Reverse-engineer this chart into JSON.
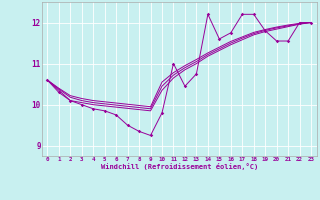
{
  "xlabel": "Windchill (Refroidissement éolien,°C)",
  "bg_color": "#c8f0f0",
  "line_color": "#990099",
  "grid_color": "#ffffff",
  "series": {
    "main": [
      10.6,
      10.3,
      10.1,
      10.0,
      9.9,
      9.85,
      9.75,
      9.5,
      9.35,
      9.25,
      9.8,
      11.0,
      10.45,
      10.75,
      12.2,
      11.6,
      11.75,
      12.2,
      12.2,
      11.8,
      11.55,
      11.55,
      12.0,
      12.0
    ],
    "line2": [
      10.6,
      10.35,
      10.1,
      10.05,
      10.0,
      9.97,
      9.94,
      9.91,
      9.88,
      9.85,
      10.35,
      10.65,
      10.85,
      11.0,
      11.18,
      11.32,
      11.46,
      11.58,
      11.7,
      11.78,
      11.84,
      11.9,
      11.96,
      12.0
    ],
    "line3": [
      10.6,
      10.38,
      10.18,
      10.1,
      10.05,
      10.02,
      9.99,
      9.96,
      9.93,
      9.9,
      10.45,
      10.72,
      10.9,
      11.05,
      11.22,
      11.36,
      11.5,
      11.62,
      11.73,
      11.81,
      11.87,
      11.92,
      11.97,
      12.0
    ],
    "line4": [
      10.6,
      10.4,
      10.22,
      10.15,
      10.1,
      10.07,
      10.04,
      10.01,
      9.98,
      9.95,
      10.55,
      10.78,
      10.95,
      11.1,
      11.26,
      11.4,
      11.54,
      11.65,
      11.76,
      11.83,
      11.89,
      11.94,
      11.98,
      12.0
    ]
  },
  "x_values": [
    0,
    1,
    2,
    3,
    4,
    5,
    6,
    7,
    8,
    9,
    10,
    11,
    12,
    13,
    14,
    15,
    16,
    17,
    18,
    19,
    20,
    21,
    22,
    23
  ],
  "ylim": [
    8.75,
    12.5
  ],
  "yticks": [
    9,
    10,
    11,
    12
  ],
  "xlim": [
    -0.5,
    23.5
  ],
  "figsize": [
    3.2,
    2.0
  ],
  "dpi": 100
}
